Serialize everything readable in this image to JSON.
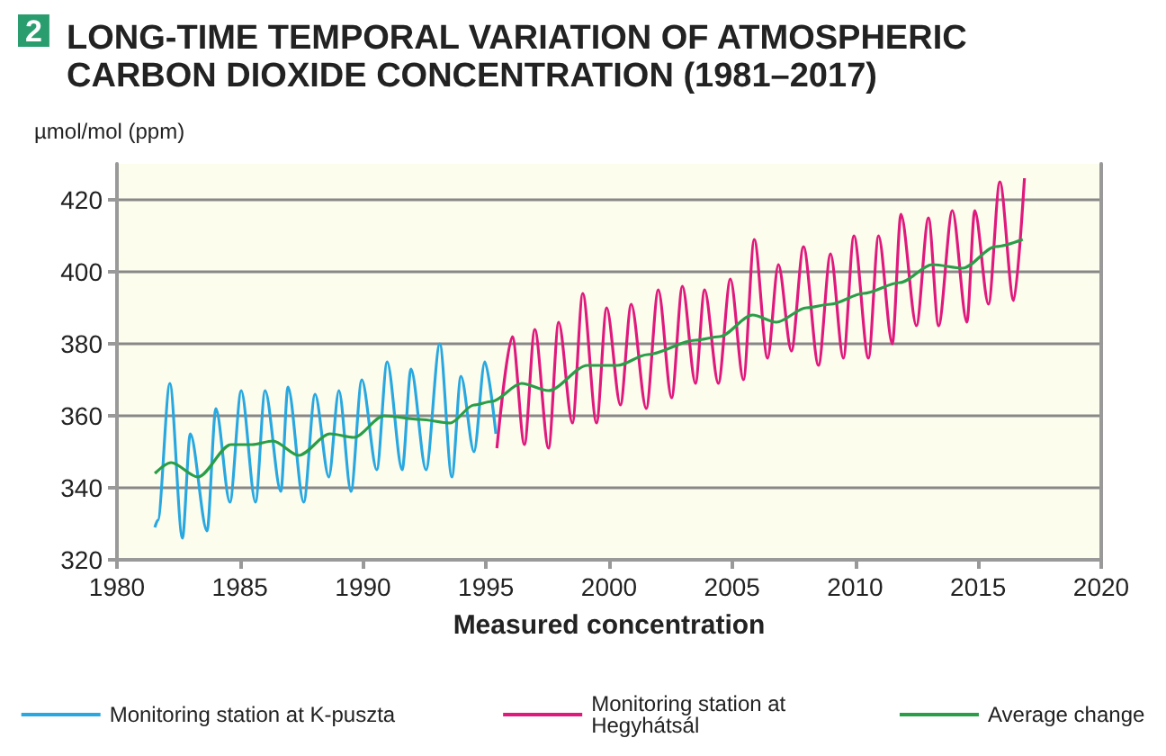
{
  "chart_data": {
    "type": "line",
    "title": "LONG-TIME TEMPORAL VARIATION OF ATMOSPHERIC CARBON DIOXIDE CONCENTRATION (1981–2017)",
    "annotations": [
      "2"
    ],
    "xlabel": "Measured concentration",
    "ylabel": "µmol/mol (ppm)",
    "xlim": [
      1980,
      2020
    ],
    "xticks": [
      1980,
      1985,
      1990,
      1995,
      2000,
      2005,
      2010,
      2015,
      2020
    ],
    "ylim": [
      320,
      430
    ],
    "yticks": [
      320,
      340,
      360,
      380,
      400,
      420
    ],
    "grid": "y",
    "legend": "bottom",
    "marker": "none",
    "line_style": "solid",
    "series": [
      {
        "name": "Monitoring station at K-puszta",
        "color": "#29a8e0",
        "x": [
          1981.54,
          1981.66,
          1982.15,
          1982.66,
          1982.98,
          1983.66,
          1984.02,
          1984.59,
          1985.05,
          1985.63,
          1986.02,
          1986.66,
          1986.95,
          1987.59,
          1988.05,
          1988.61,
          1989.02,
          1989.51,
          1989.95,
          1990.56,
          1990.98,
          1991.59,
          1991.95,
          1992.56,
          1993.12,
          1993.61,
          1993.98,
          1994.51,
          1994.95,
          1995.4
        ],
        "values": [
          329,
          331,
          369,
          326,
          355,
          328,
          362,
          336,
          367,
          336,
          367,
          339,
          368,
          336,
          366,
          343,
          367,
          339,
          370,
          345,
          375,
          345,
          373,
          345,
          380,
          343,
          371,
          350,
          375,
          355
        ]
      },
      {
        "name": "Monitoring station at Hegyhátsál",
        "color": "#e0197d",
        "x": [
          1995.44,
          1996.07,
          1996.56,
          1996.98,
          1997.54,
          1997.95,
          1998.51,
          1998.93,
          1999.49,
          1999.9,
          2000.46,
          2000.9,
          2001.51,
          2002.0,
          2002.54,
          2002.98,
          2003.51,
          2003.88,
          2004.44,
          2004.93,
          2005.46,
          2005.9,
          2006.44,
          2006.88,
          2007.41,
          2007.9,
          2008.51,
          2009.0,
          2009.52,
          2009.95,
          2010.54,
          2010.95,
          2011.51,
          2011.86,
          2012.49,
          2012.98,
          2013.39,
          2013.95,
          2014.54,
          2014.86,
          2015.42,
          2015.88,
          2016.44,
          2016.88
        ],
        "values": [
          351,
          382,
          352,
          384,
          351,
          386,
          358,
          394,
          358,
          390,
          363,
          391,
          362,
          395,
          365,
          396,
          369,
          395,
          369,
          398,
          370,
          409,
          376,
          402,
          378,
          407,
          374,
          405,
          376,
          410,
          376,
          410,
          380,
          416,
          385,
          415,
          385,
          417,
          386,
          417,
          391,
          425,
          392,
          426
        ]
      },
      {
        "name": "Average change",
        "color": "#2a9d48",
        "x": [
          1981.54,
          1982.2,
          1983.29,
          1984.63,
          1985.49,
          1986.34,
          1987.39,
          1988.66,
          1989.63,
          1990.85,
          1992.32,
          1993.54,
          1994.51,
          1995.24,
          1996.44,
          1997.54,
          1999.12,
          2000.34,
          2001.56,
          2003.51,
          2004.49,
          2005.83,
          2006.8,
          2008.02,
          2009.0,
          2010.34,
          2011.81,
          2013.15,
          2014.37,
          2015.71,
          2016.81
        ],
        "values": [
          344,
          347,
          343,
          352,
          352,
          353,
          349,
          355,
          354,
          360,
          359,
          358,
          363,
          364,
          369,
          367,
          374,
          374,
          377,
          381,
          382,
          388,
          386,
          390,
          391,
          394,
          397,
          402,
          401,
          407,
          409
        ]
      }
    ]
  }
}
